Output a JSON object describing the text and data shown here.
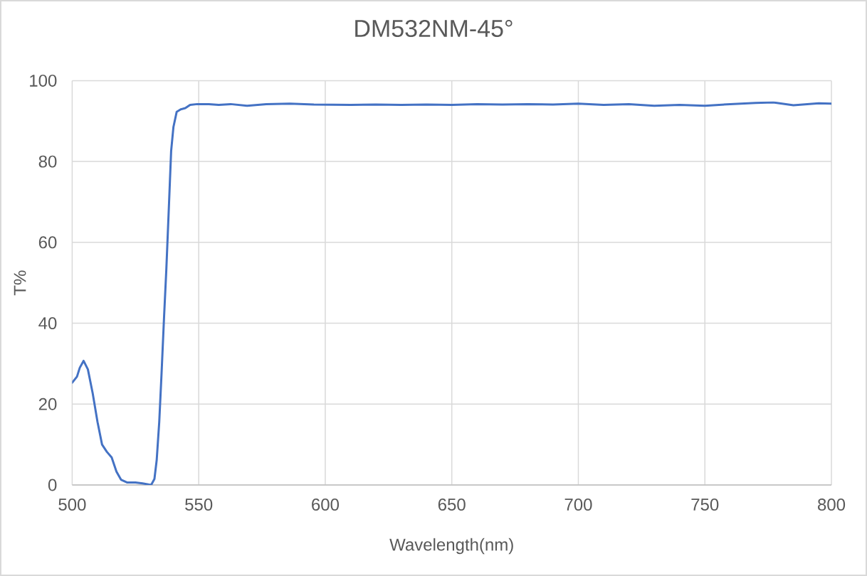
{
  "chart_data": {
    "type": "line",
    "title": "DM532NM-45°",
    "xlabel": "Wavelength(nm)",
    "ylabel": "T%",
    "x": [
      500,
      501.9,
      503,
      504.5,
      506.2,
      508.1,
      510,
      511.8,
      513.7,
      515.6,
      517.5,
      519.3,
      521.8,
      525,
      527.8,
      531.2,
      532.5,
      533.4,
      534.4,
      535.3,
      536.3,
      537.2,
      538.1,
      539.1,
      540,
      541.3,
      542.9,
      544.7,
      546.6,
      549.4,
      554,
      557.9,
      562.6,
      569.1,
      576.7,
      586,
      595.5,
      610,
      620,
      630,
      640,
      650,
      660,
      670,
      680,
      690,
      700,
      710,
      720,
      730,
      740,
      750,
      760,
      770,
      777,
      785,
      795,
      800
    ],
    "series": [
      {
        "color": "#4472c4",
        "values": [
          25.3,
          26.8,
          29.0,
          30.7,
          28.6,
          22.7,
          15.6,
          10,
          8.2,
          6.8,
          3.3,
          1.3,
          0.6,
          0.6,
          0.4,
          0,
          1.5,
          6.2,
          15.6,
          27.4,
          41.5,
          53.3,
          67.1,
          82.6,
          88.5,
          92.3,
          92.9,
          93.2,
          94,
          94.2,
          94.2,
          94,
          94.2,
          93.8,
          94.2,
          94.3,
          94.1,
          94.0,
          94.1,
          94.0,
          94.1,
          94.0,
          94.2,
          94.1,
          94.2,
          94.1,
          94.3,
          94.0,
          94.2,
          93.8,
          94.0,
          93.8,
          94.2,
          94.5,
          94.6,
          93.9,
          94.4,
          94.3
        ]
      }
    ],
    "xlim": [
      500,
      800
    ],
    "ylim": [
      0,
      100
    ],
    "xticks": [
      500,
      550,
      600,
      650,
      700,
      750,
      800
    ],
    "yticks": [
      0,
      20,
      40,
      60,
      80,
      100
    ],
    "grid": true
  }
}
